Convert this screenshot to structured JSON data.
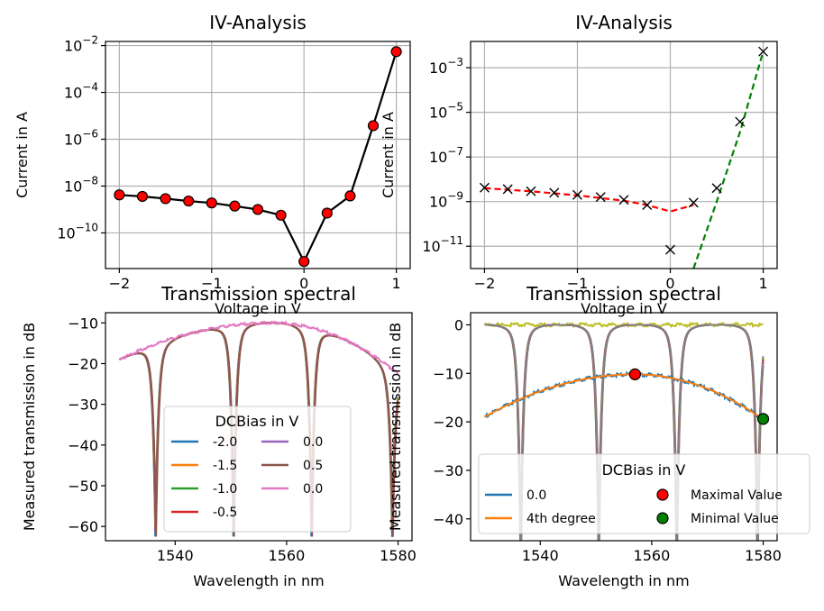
{
  "colors": {
    "c0": "#1f77b4",
    "c1": "#ff7f0e",
    "c2": "#2ca02c",
    "c3": "#d62728",
    "c4": "#9467bd",
    "c5": "#8c564b",
    "c6": "#e377c2",
    "c7": "#7f7f7f",
    "c8": "#bcbd22",
    "marker_red": "#ff0000",
    "marker_green": "#008000",
    "fit_red": "#ff0000",
    "fit_green": "#008000"
  },
  "chart_data": [
    {
      "type": "line",
      "title": "IV-Analysis",
      "xlabel": "Voltage in V",
      "ylabel": "Current in A",
      "yscale": "log",
      "grid": true,
      "xlim": [
        -2.15,
        1.15
      ],
      "ylim": [
        3e-12,
        0.015
      ],
      "xticks": [
        {
          "value": -2,
          "label": "−2"
        },
        {
          "value": -1,
          "label": "−1"
        },
        {
          "value": 0,
          "label": "0"
        },
        {
          "value": 1,
          "label": "1"
        }
      ],
      "yticks": [
        {
          "value": 1e-10,
          "base": "10",
          "exp": "−10"
        },
        {
          "value": 1e-08,
          "base": "10",
          "exp": "−8"
        },
        {
          "value": 1e-06,
          "base": "10",
          "exp": "−6"
        },
        {
          "value": 0.0001,
          "base": "10",
          "exp": "−4"
        },
        {
          "value": 0.01,
          "base": "10",
          "exp": "−2"
        }
      ],
      "series": [
        {
          "style": "black-line-red-circles",
          "x": [
            -2.0,
            -1.75,
            -1.5,
            -1.25,
            -1.0,
            -0.75,
            -0.5,
            -0.25,
            0.0,
            0.25,
            0.5,
            0.75,
            1.0
          ],
          "y": [
            4.2e-09,
            3.6e-09,
            2.9e-09,
            2.3e-09,
            1.9e-09,
            1.4e-09,
            1e-09,
            5.7e-10,
            6e-12,
            7e-10,
            3.8e-09,
            3.8e-06,
            0.0055
          ]
        }
      ]
    },
    {
      "type": "line",
      "title": "IV-Analysis",
      "xlabel": "Voltage in V",
      "ylabel": "Current in A",
      "yscale": "log",
      "grid": true,
      "xlim": [
        -2.15,
        1.15
      ],
      "ylim": [
        1e-12,
        0.015
      ],
      "xticks": [
        {
          "value": -2,
          "label": "−2"
        },
        {
          "value": -1,
          "label": "−1"
        },
        {
          "value": 0,
          "label": "0"
        },
        {
          "value": 1,
          "label": "1"
        }
      ],
      "yticks": [
        {
          "value": 1e-11,
          "base": "10",
          "exp": "−11"
        },
        {
          "value": 1e-09,
          "base": "10",
          "exp": "−9"
        },
        {
          "value": 1e-07,
          "base": "10",
          "exp": "−7"
        },
        {
          "value": 1e-05,
          "base": "10",
          "exp": "−5"
        },
        {
          "value": 0.001,
          "base": "10",
          "exp": "−3"
        }
      ],
      "markers": {
        "style": "black-x",
        "x": [
          -2.0,
          -1.75,
          -1.5,
          -1.25,
          -1.0,
          -0.75,
          -0.5,
          -0.25,
          0.0,
          0.25,
          0.5,
          0.75,
          1.0
        ],
        "y": [
          4.2e-09,
          3.6e-09,
          2.9e-09,
          2.5e-09,
          2e-09,
          1.6e-09,
          1.2e-09,
          7e-10,
          7e-12,
          9e-10,
          4e-09,
          3.8e-06,
          0.0053
        ]
      },
      "fits": [
        {
          "style": "red-dashed",
          "x": [
            -2.0,
            -1.5,
            -1.0,
            -0.5,
            -0.25,
            0.0,
            0.25
          ],
          "y": [
            4e-09,
            2.9e-09,
            1.9e-09,
            1.1e-09,
            7e-10,
            3.6e-10,
            7e-10
          ]
        },
        {
          "style": "green-dashed",
          "x": [
            0.25,
            0.5,
            0.75,
            1.0
          ],
          "y": [
            1e-12,
            1e-09,
            1.3e-06,
            0.0053
          ]
        }
      ]
    },
    {
      "type": "line",
      "title": "Transmission spectral",
      "xlabel": "Wavelength in nm",
      "ylabel": "Measured transmission in dB",
      "grid": false,
      "xlim": [
        1527.5,
        1582.5
      ],
      "ylim": [
        -63.5,
        -7.5
      ],
      "xticks": [
        {
          "value": 1540,
          "label": "1540"
        },
        {
          "value": 1560,
          "label": "1560"
        },
        {
          "value": 1580,
          "label": "1580"
        }
      ],
      "yticks": [
        {
          "value": -60,
          "label": "−60"
        },
        {
          "value": -50,
          "label": "−50"
        },
        {
          "value": -40,
          "label": "−40"
        },
        {
          "value": -30,
          "label": "−30"
        },
        {
          "value": -20,
          "label": "−20"
        },
        {
          "value": -10,
          "label": "−10"
        }
      ],
      "dips": [
        1536.5,
        1550.5,
        1564.5,
        1579.0
      ],
      "envelope": {
        "peak_x": 1557.5,
        "peak_y": -10.0,
        "start_y": -19.0,
        "end_y": -22.5,
        "x_start": 1530.0,
        "x_end": 1580.0
      },
      "dip_depth": -57.0,
      "legend": {
        "title": "DCBias in V",
        "entries": [
          {
            "label": "-2.0",
            "color": "#1f77b4"
          },
          {
            "label": "-1.5",
            "color": "#ff7f0e"
          },
          {
            "label": "-1.0",
            "color": "#2ca02c"
          },
          {
            "label": "-0.5",
            "color": "#d62728"
          },
          {
            "label": "0.0",
            "color": "#9467bd"
          },
          {
            "label": "0.5",
            "color": "#8c564b"
          },
          {
            "label": "0.0",
            "color": "#e377c2"
          }
        ]
      }
    },
    {
      "type": "line",
      "title": "Transmission spectral",
      "xlabel": "Wavelength in nm",
      "ylabel": "Measured transmission in dB",
      "grid": false,
      "xlim": [
        1527.5,
        1582.5
      ],
      "ylim": [
        -44.5,
        2.5
      ],
      "xticks": [
        {
          "value": 1540,
          "label": "1540"
        },
        {
          "value": 1560,
          "label": "1560"
        },
        {
          "value": 1580,
          "label": "1580"
        }
      ],
      "yticks": [
        {
          "value": -40,
          "label": "−40"
        },
        {
          "value": -30,
          "label": "−30"
        },
        {
          "value": -20,
          "label": "−20"
        },
        {
          "value": -10,
          "label": "−10"
        },
        {
          "value": 0,
          "label": "0"
        }
      ],
      "dips": [
        1536.5,
        1550.5,
        1564.5,
        1579.0
      ],
      "dip_depth": -42.0,
      "envelope": {
        "peak_x": 1557.0,
        "peak_y": -10.2,
        "start_y": -19.0,
        "end_y": -19.5,
        "x_start": 1530.0,
        "x_end": 1580.0
      },
      "max_point": {
        "x": 1557.0,
        "y": -10.2
      },
      "min_point": {
        "x": 1580.0,
        "y": -19.4
      },
      "legend": {
        "title": "DCBias in V",
        "entries": [
          {
            "label": "0.0",
            "kind": "line",
            "color": "#1f77b4"
          },
          {
            "label": "4th degree",
            "kind": "line",
            "color": "#ff7f0e"
          },
          {
            "label": "Maximal Value",
            "kind": "marker",
            "color": "#ff0000"
          },
          {
            "label": "Minimal Value",
            "kind": "marker",
            "color": "#008000"
          }
        ]
      }
    }
  ]
}
